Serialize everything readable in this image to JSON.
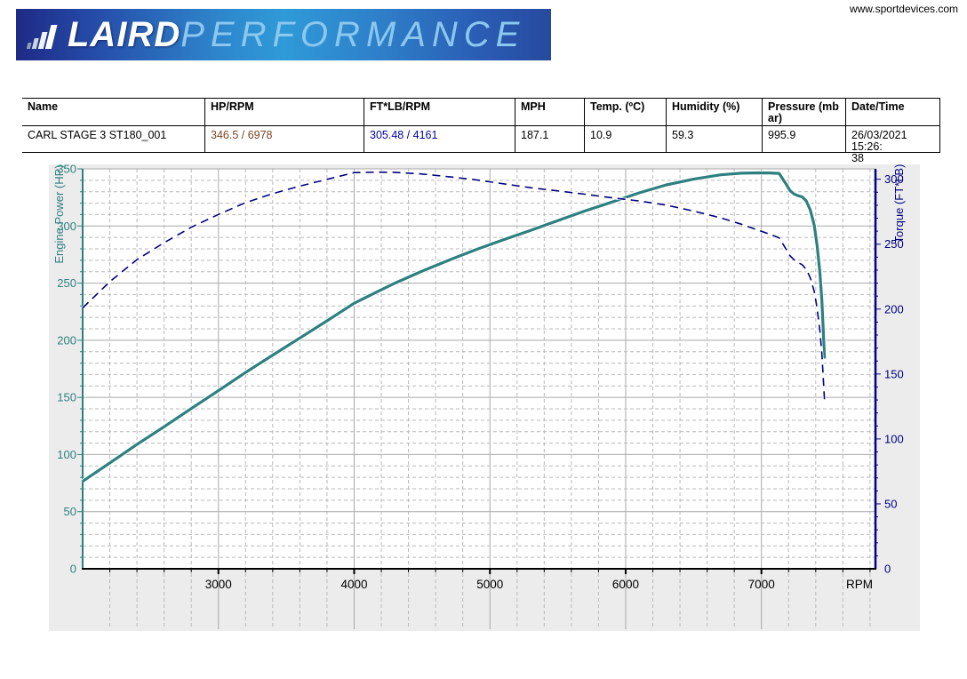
{
  "page": {
    "website": "www.sportdevices.com"
  },
  "logo": {
    "primary": "LAIRD",
    "secondary": "PERFORMANCE",
    "icon": "ascending-bars-chart-icon",
    "banner_colors": [
      "#1e2a85",
      "#2f9ad8",
      "#264a9e"
    ],
    "primary_color": "#ffffff",
    "secondary_color": "#8cc8ee"
  },
  "table": {
    "columns": [
      {
        "header_line1": "Name",
        "header_line2": "",
        "value_line1": "CARL STAGE 3 ST180_001",
        "value_line2": "",
        "value_color": "#000000"
      },
      {
        "header_line1": "HP/RPM",
        "header_line2": "",
        "value_line1": "346.5 / 6978",
        "value_line2": "",
        "value_color": "#7a4520"
      },
      {
        "header_line1": "FT*LB/RPM",
        "header_line2": "",
        "value_line1": "305.48 / 4161",
        "value_line2": "",
        "value_color": "#0000a0"
      },
      {
        "header_line1": "MPH",
        "header_line2": "",
        "value_line1": "187.1",
        "value_line2": "",
        "value_color": "#000000"
      },
      {
        "header_line1": "Temp. (ºC)",
        "header_line2": "",
        "value_line1": "10.9",
        "value_line2": "",
        "value_color": "#000000"
      },
      {
        "header_line1": "Humidity (%)",
        "header_line2": "",
        "value_line1": "59.3",
        "value_line2": "",
        "value_color": "#000000"
      },
      {
        "header_line1": "Pressure (mb",
        "header_line2": "ar)",
        "value_line1": "995.9",
        "value_line2": "",
        "value_color": "#000000"
      },
      {
        "header_line1": "Date/Time",
        "header_line2": "",
        "value_line1": "26/03/2021 15:26:",
        "value_line2": "38",
        "value_color": "#000000"
      }
    ]
  },
  "chart_data": {
    "type": "line",
    "panel_bg": "#ececec",
    "plot_bg": "#ffffff",
    "grid_major_color": "#a9a9a9",
    "grid_minor_color": "#b9b9b9",
    "x_axis": {
      "label": "RPM",
      "min": 2000,
      "max": 7840,
      "major_step": 1000,
      "minor_step": 200,
      "tick_labels": [
        "3000",
        "4000",
        "5000",
        "6000",
        "7000"
      ],
      "color": "#000000"
    },
    "y_left": {
      "label": "Engine Power (HP)",
      "min": 0,
      "max": 350,
      "major_step": 50,
      "minor_step": 10,
      "tick_labels": [
        "0",
        "50",
        "100",
        "150",
        "200",
        "250",
        "300",
        "350"
      ],
      "color": "#2e8080"
    },
    "y_right": {
      "label": "Torque (FT*LB)",
      "min": 0,
      "max": 308,
      "major_step": 50,
      "minor_step": 10,
      "tick_labels": [
        "0",
        "50",
        "100",
        "150",
        "200",
        "250",
        "300"
      ],
      "color": "#000080"
    },
    "rpm": [
      2000,
      2200,
      2400,
      2600,
      2800,
      3000,
      3200,
      3400,
      3600,
      3800,
      4000,
      4161,
      4300,
      4500,
      4700,
      4900,
      5100,
      5300,
      5500,
      5700,
      5900,
      6100,
      6300,
      6500,
      6700,
      6850,
      6978,
      7060,
      7130,
      7180,
      7210,
      7240,
      7270,
      7300,
      7330,
      7360,
      7390,
      7410,
      7430,
      7445,
      7455,
      7465
    ],
    "series": [
      {
        "name": "Engine Power (HP)",
        "axis": "left",
        "color": "#2e8080",
        "style": "solid",
        "peak": "346.5 HP @ 6978 RPM",
        "values": [
          76.5,
          92.6,
          108.8,
          124.3,
          140.2,
          155.9,
          171.8,
          187,
          202,
          217,
          232.4,
          242,
          250,
          260.5,
          270.2,
          279.4,
          287.9,
          296.2,
          304.7,
          313.1,
          321,
          329,
          336,
          341,
          344.8,
          346.2,
          346.5,
          346.4,
          346,
          337,
          331,
          328,
          326.5,
          325.5,
          322,
          314,
          300,
          283,
          260,
          235,
          210,
          184
        ]
      },
      {
        "name": "Torque (FT*LB)",
        "axis": "right",
        "color": "#000080",
        "style": "dashed",
        "peak": "305.48 FT*LB @ 4161 RPM",
        "values": [
          200.9,
          221.1,
          238.1,
          251.1,
          263.0,
          272.9,
          282.0,
          288.9,
          294.7,
          299.9,
          305.1,
          305.5,
          305.3,
          304.0,
          301.9,
          299.5,
          296.5,
          293.5,
          291.0,
          288.5,
          285.7,
          283.3,
          280.1,
          275.5,
          270.3,
          265.4,
          260.8,
          257.7,
          254.9,
          246.5,
          241.1,
          238.0,
          235.9,
          234.2,
          230.7,
          224.1,
          213.2,
          200.6,
          183.8,
          165.8,
          147.9,
          129.4
        ]
      }
    ]
  }
}
